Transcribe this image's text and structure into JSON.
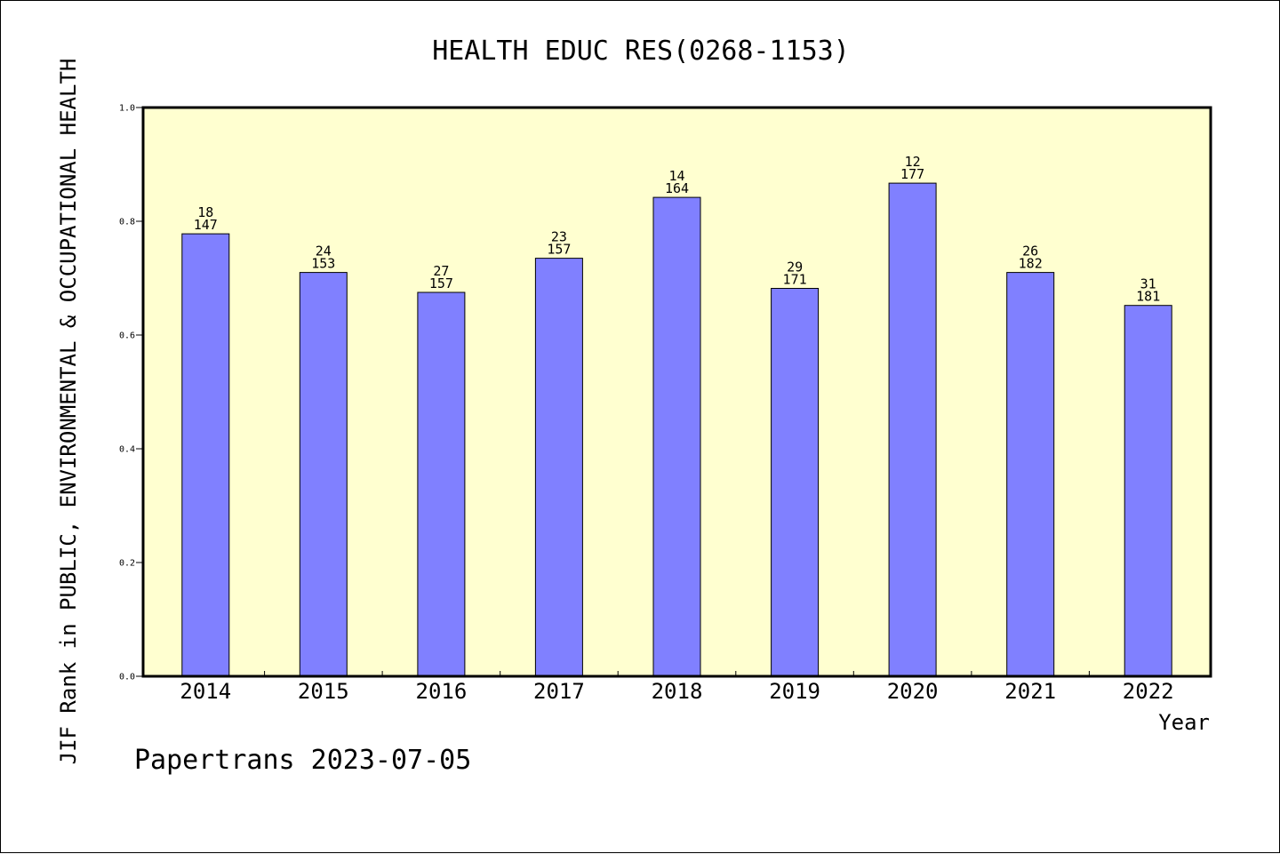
{
  "chart_data": {
    "type": "bar",
    "title": "HEALTH EDUC RES(0268-1153)",
    "ylabel": "JIF Rank in PUBLIC, ENVIRONMENTAL & OCCUPATIONAL HEALTH",
    "xlabel": "Year",
    "ylim": [
      0,
      1.0
    ],
    "yticks": [
      "0.0",
      "0.2",
      "0.4",
      "0.6",
      "0.8",
      "1.0"
    ],
    "ytick_values": [
      0,
      0.2,
      0.4,
      0.6,
      0.8,
      1.0
    ],
    "categories": [
      "2014",
      "2015",
      "2016",
      "2017",
      "2018",
      "2019",
      "2020",
      "2021",
      "2022"
    ],
    "values": [
      0.778,
      0.71,
      0.675,
      0.735,
      0.842,
      0.682,
      0.867,
      0.71,
      0.652
    ],
    "ranks": [
      "18",
      "24",
      "27",
      "23",
      "14",
      "29",
      "12",
      "26",
      "31"
    ],
    "totals": [
      "147",
      "153",
      "157",
      "157",
      "164",
      "171",
      "177",
      "182",
      "181"
    ],
    "grid": false,
    "colors": {
      "bar": "#8080ff",
      "plot_bg": "#ffffd0",
      "axis": "#000000"
    }
  },
  "footer": {
    "text": "Papertrans 2023-07-05"
  }
}
